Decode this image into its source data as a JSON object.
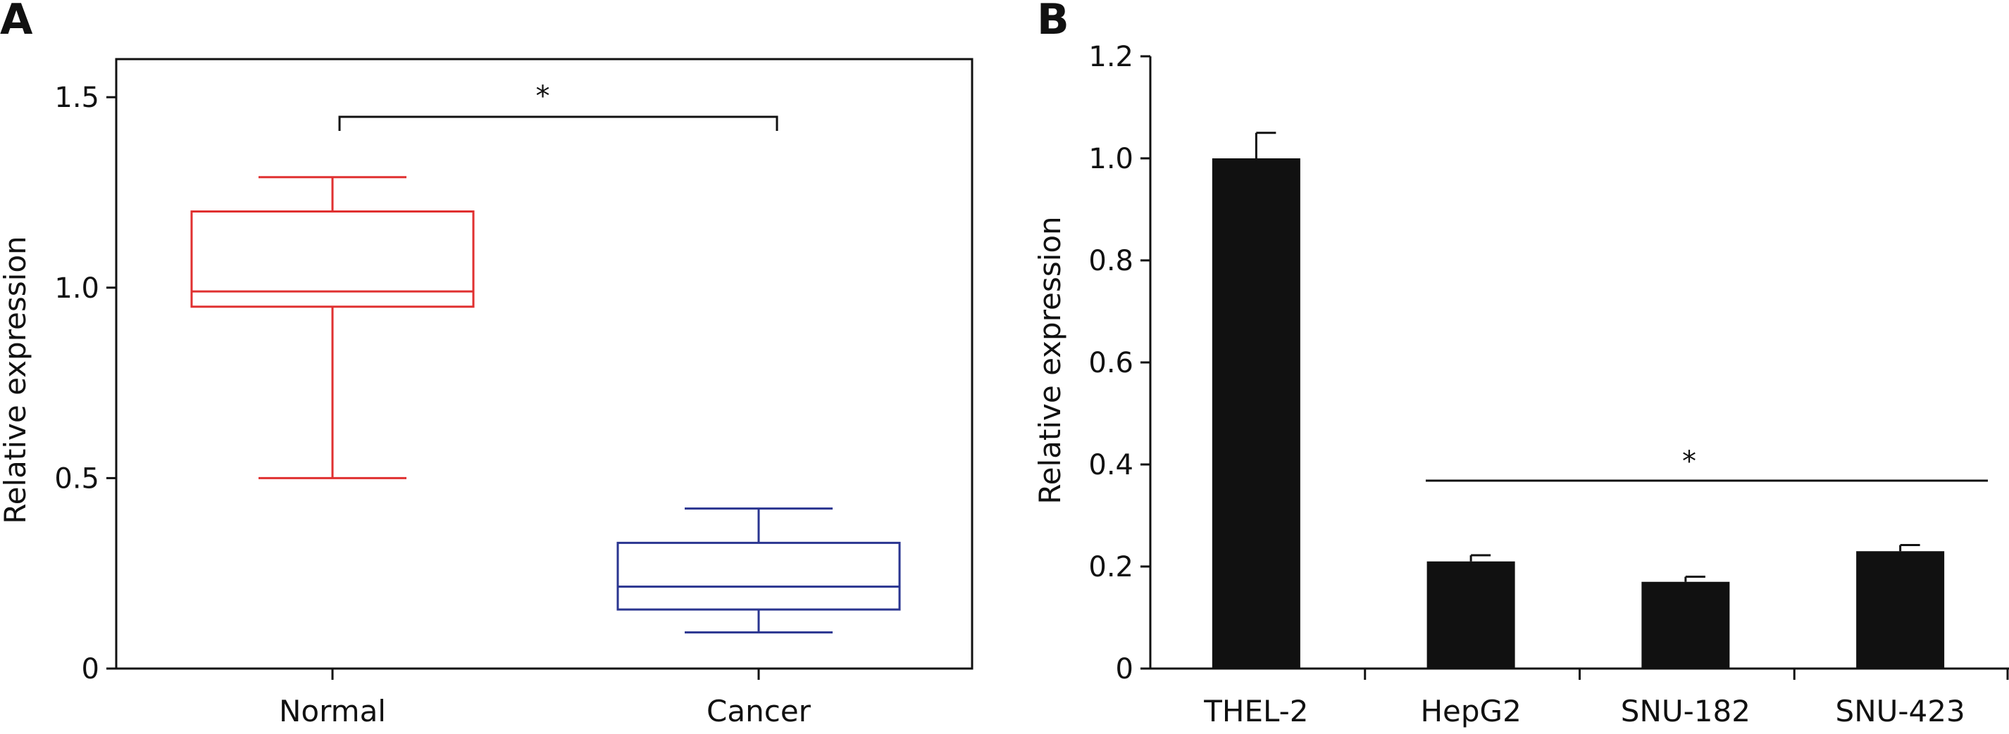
{
  "chart_data": [
    {
      "type": "box",
      "panel": "A",
      "ylabel": "Relative expression",
      "ylim": [
        0,
        1.6
      ],
      "yticks": [
        "0",
        "0.5",
        "1.0",
        "1.5"
      ],
      "categories": [
        "Normal",
        "Cancer"
      ],
      "boxes": [
        {
          "category": "Normal",
          "min": 0.5,
          "q1": 0.95,
          "median": 0.99,
          "q3": 1.2,
          "max": 1.29,
          "color": "#e03030"
        },
        {
          "category": "Cancer",
          "min": 0.095,
          "q1": 0.155,
          "median": 0.215,
          "q3": 0.33,
          "max": 0.42,
          "color": "#2a3590"
        }
      ],
      "significance": {
        "label": "*",
        "between": [
          "Normal",
          "Cancer"
        ]
      },
      "grid": false
    },
    {
      "type": "bar",
      "panel": "B",
      "ylabel": "Relative expression",
      "ylim": [
        0,
        1.2
      ],
      "yticks": [
        "0",
        "0.2",
        "0.4",
        "0.6",
        "0.8",
        "1.0",
        "1.2"
      ],
      "categories": [
        "THEL-2",
        "HepG2",
        "SNU-182",
        "SNU-423"
      ],
      "values": [
        1.0,
        0.21,
        0.17,
        0.23
      ],
      "errors": [
        0.05,
        0.012,
        0.01,
        0.012
      ],
      "bar_color": "#111111",
      "significance": {
        "label": "*",
        "span": [
          "HepG2",
          "SNU-423"
        ]
      },
      "grid": false
    }
  ]
}
